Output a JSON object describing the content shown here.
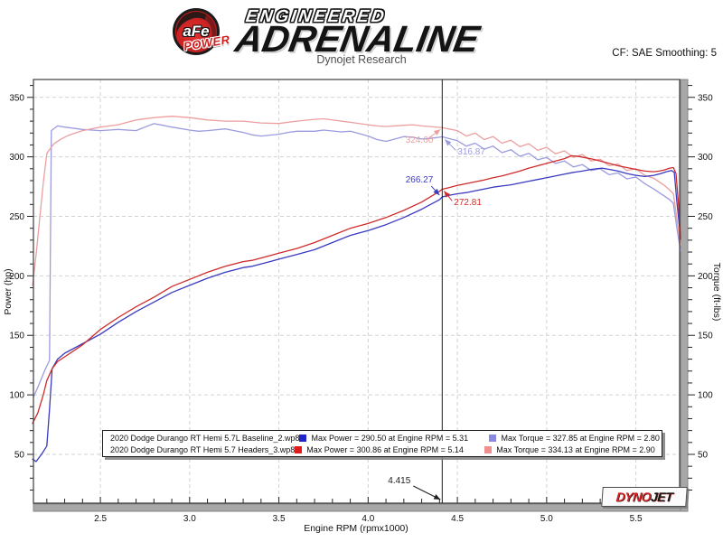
{
  "header": {
    "brand_badge": "aFe",
    "brand_sub": "POWER",
    "brand_line1": "ENGINEERED",
    "brand_line2": "ADRENALINE",
    "subtitle": "Dynojet Research",
    "correction": "CF: SAE Smoothing: 5"
  },
  "footer_logo": {
    "dyno": "DYNO",
    "jet": "JET"
  },
  "chart_data": {
    "type": "line",
    "xlabel": "Engine RPM (rpmx1000)",
    "ylabel_left": "Power (hp)",
    "ylabel_right": "Torque (ft-lbs)",
    "xlim": [
      2.125,
      5.745
    ],
    "ylim": [
      9,
      365
    ],
    "x_ticks": [
      2.5,
      3.0,
      3.5,
      4.0,
      4.5,
      5.0,
      5.5
    ],
    "y_ticks": [
      50,
      100,
      150,
      200,
      250,
      300,
      350
    ],
    "grid": "dashed",
    "cursor": {
      "rpm": 4.415,
      "label": "4.415",
      "values": [
        {
          "series": "headers_torque",
          "value": 324.6,
          "label": "324.60"
        },
        {
          "series": "baseline_torque",
          "value": 316.87,
          "label": "316.87"
        },
        {
          "series": "baseline_power",
          "value": 266.27,
          "label": "266.27"
        },
        {
          "series": "headers_power",
          "value": 272.81,
          "label": "272.81"
        }
      ]
    },
    "series": [
      {
        "name": "baseline_torque",
        "color": "#9b9bdf",
        "points": [
          [
            2.125,
            98
          ],
          [
            2.16,
            110
          ],
          [
            2.19,
            121
          ],
          [
            2.215,
            129
          ],
          [
            2.225,
            322
          ],
          [
            2.26,
            326
          ],
          [
            2.3,
            325
          ],
          [
            2.4,
            323
          ],
          [
            2.5,
            322
          ],
          [
            2.6,
            323
          ],
          [
            2.7,
            322
          ],
          [
            2.75,
            325
          ],
          [
            2.8,
            327.9
          ],
          [
            2.85,
            326.5
          ],
          [
            2.9,
            325
          ],
          [
            3.0,
            322.5
          ],
          [
            3.05,
            321.5
          ],
          [
            3.1,
            322
          ],
          [
            3.2,
            323.5
          ],
          [
            3.25,
            322
          ],
          [
            3.3,
            320.5
          ],
          [
            3.35,
            318.5
          ],
          [
            3.4,
            317.5
          ],
          [
            3.5,
            319
          ],
          [
            3.55,
            320.5
          ],
          [
            3.6,
            321.5
          ],
          [
            3.7,
            321.5
          ],
          [
            3.75,
            322.5
          ],
          [
            3.85,
            321
          ],
          [
            3.9,
            321.5
          ],
          [
            3.95,
            319.5
          ],
          [
            4.0,
            317.5
          ],
          [
            4.05,
            314.5
          ],
          [
            4.1,
            313
          ],
          [
            4.15,
            315
          ],
          [
            4.2,
            317
          ],
          [
            4.25,
            316.5
          ],
          [
            4.3,
            315
          ],
          [
            4.35,
            315.5
          ],
          [
            4.4,
            316.5
          ],
          [
            4.415,
            316.9
          ],
          [
            4.45,
            315.5
          ],
          [
            4.5,
            313.5
          ],
          [
            4.55,
            309
          ],
          [
            4.6,
            311.5
          ],
          [
            4.65,
            306.5
          ],
          [
            4.7,
            309
          ],
          [
            4.75,
            303.5
          ],
          [
            4.8,
            306
          ],
          [
            4.85,
            300.5
          ],
          [
            4.9,
            303
          ],
          [
            4.95,
            297.5
          ],
          [
            5.0,
            299.5
          ],
          [
            5.05,
            294.5
          ],
          [
            5.1,
            296.5
          ],
          [
            5.15,
            291.5
          ],
          [
            5.2,
            293.5
          ],
          [
            5.25,
            288.5
          ],
          [
            5.3,
            290
          ],
          [
            5.35,
            285
          ],
          [
            5.4,
            286.5
          ],
          [
            5.45,
            281.5
          ],
          [
            5.5,
            283
          ],
          [
            5.55,
            277.5
          ],
          [
            5.6,
            273
          ],
          [
            5.63,
            270
          ],
          [
            5.66,
            267
          ],
          [
            5.69,
            264
          ],
          [
            5.71,
            261
          ],
          [
            5.73,
            240
          ],
          [
            5.75,
            221
          ]
        ]
      },
      {
        "name": "headers_torque",
        "color": "#eb9f9f",
        "points": [
          [
            2.12,
            192
          ],
          [
            2.14,
            218
          ],
          [
            2.16,
            248
          ],
          [
            2.18,
            278
          ],
          [
            2.2,
            303
          ],
          [
            2.24,
            311
          ],
          [
            2.28,
            315
          ],
          [
            2.32,
            318
          ],
          [
            2.4,
            322
          ],
          [
            2.5,
            325
          ],
          [
            2.6,
            327
          ],
          [
            2.7,
            331
          ],
          [
            2.8,
            333
          ],
          [
            2.9,
            334.1
          ],
          [
            3.0,
            333
          ],
          [
            3.1,
            331
          ],
          [
            3.2,
            330
          ],
          [
            3.3,
            330
          ],
          [
            3.4,
            328.5
          ],
          [
            3.5,
            328
          ],
          [
            3.6,
            330
          ],
          [
            3.7,
            331.5
          ],
          [
            3.75,
            332
          ],
          [
            3.85,
            330
          ],
          [
            3.9,
            329
          ],
          [
            4.0,
            327
          ],
          [
            4.05,
            326
          ],
          [
            4.1,
            325.5
          ],
          [
            4.2,
            326.5
          ],
          [
            4.25,
            327
          ],
          [
            4.3,
            326
          ],
          [
            4.4,
            324.8
          ],
          [
            4.415,
            324.6
          ],
          [
            4.45,
            323.5
          ],
          [
            4.5,
            322
          ],
          [
            4.55,
            317.5
          ],
          [
            4.6,
            320
          ],
          [
            4.65,
            314.5
          ],
          [
            4.7,
            317
          ],
          [
            4.75,
            311.5
          ],
          [
            4.8,
            314
          ],
          [
            4.85,
            308.5
          ],
          [
            4.9,
            311
          ],
          [
            4.95,
            305.5
          ],
          [
            5.0,
            308
          ],
          [
            5.05,
            302.5
          ],
          [
            5.1,
            305
          ],
          [
            5.15,
            299.5
          ],
          [
            5.2,
            302
          ],
          [
            5.25,
            296.5
          ],
          [
            5.3,
            298
          ],
          [
            5.35,
            292.5
          ],
          [
            5.4,
            294
          ],
          [
            5.45,
            288.5
          ],
          [
            5.5,
            290
          ],
          [
            5.55,
            284.5
          ],
          [
            5.6,
            282
          ],
          [
            5.63,
            279
          ],
          [
            5.66,
            276
          ],
          [
            5.69,
            272
          ],
          [
            5.71,
            269
          ],
          [
            5.73,
            248
          ],
          [
            5.75,
            226
          ]
        ]
      },
      {
        "name": "baseline_power",
        "color": "#3a3ac0",
        "points": [
          [
            2.12,
            46
          ],
          [
            2.14,
            44
          ],
          [
            2.17,
            50
          ],
          [
            2.2,
            57
          ],
          [
            2.215,
            88
          ],
          [
            2.23,
            122
          ],
          [
            2.26,
            130
          ],
          [
            2.3,
            135
          ],
          [
            2.4,
            143
          ],
          [
            2.5,
            151
          ],
          [
            2.6,
            161
          ],
          [
            2.7,
            170
          ],
          [
            2.8,
            178
          ],
          [
            2.9,
            186
          ],
          [
            3.0,
            192
          ],
          [
            3.1,
            198
          ],
          [
            3.2,
            203
          ],
          [
            3.3,
            207
          ],
          [
            3.35,
            208
          ],
          [
            3.45,
            212
          ],
          [
            3.5,
            214
          ],
          [
            3.6,
            218
          ],
          [
            3.7,
            222
          ],
          [
            3.8,
            228
          ],
          [
            3.9,
            234
          ],
          [
            3.95,
            236
          ],
          [
            4.0,
            238
          ],
          [
            4.1,
            243
          ],
          [
            4.2,
            249
          ],
          [
            4.3,
            256
          ],
          [
            4.4,
            264
          ],
          [
            4.415,
            266.3
          ],
          [
            4.45,
            267.5
          ],
          [
            4.5,
            269
          ],
          [
            4.55,
            270
          ],
          [
            4.6,
            271.5
          ],
          [
            4.65,
            273
          ],
          [
            4.7,
            274.5
          ],
          [
            4.75,
            275.5
          ],
          [
            4.8,
            276.5
          ],
          [
            4.85,
            278
          ],
          [
            4.9,
            279.5
          ],
          [
            4.95,
            281
          ],
          [
            5.0,
            282.5
          ],
          [
            5.05,
            284
          ],
          [
            5.1,
            285.5
          ],
          [
            5.15,
            287
          ],
          [
            5.2,
            288
          ],
          [
            5.25,
            289.5
          ],
          [
            5.31,
            290.5
          ],
          [
            5.35,
            289.5
          ],
          [
            5.4,
            288
          ],
          [
            5.45,
            286
          ],
          [
            5.5,
            284.5
          ],
          [
            5.55,
            283.5
          ],
          [
            5.6,
            284.5
          ],
          [
            5.64,
            286
          ],
          [
            5.67,
            287.5
          ],
          [
            5.7,
            288.5
          ],
          [
            5.715,
            287
          ],
          [
            5.73,
            262
          ],
          [
            5.75,
            233
          ]
        ]
      },
      {
        "name": "headers_power",
        "color": "#cf2b2b",
        "points": [
          [
            2.12,
            76
          ],
          [
            2.15,
            85
          ],
          [
            2.18,
            100
          ],
          [
            2.2,
            112
          ],
          [
            2.23,
            122
          ],
          [
            2.26,
            128
          ],
          [
            2.3,
            132
          ],
          [
            2.4,
            142
          ],
          [
            2.5,
            155
          ],
          [
            2.6,
            165
          ],
          [
            2.7,
            174
          ],
          [
            2.8,
            182
          ],
          [
            2.9,
            191
          ],
          [
            3.0,
            197
          ],
          [
            3.1,
            203
          ],
          [
            3.2,
            208
          ],
          [
            3.3,
            212
          ],
          [
            3.35,
            213
          ],
          [
            3.45,
            217
          ],
          [
            3.5,
            219
          ],
          [
            3.6,
            223
          ],
          [
            3.7,
            228
          ],
          [
            3.8,
            234
          ],
          [
            3.9,
            240
          ],
          [
            3.95,
            242
          ],
          [
            4.0,
            244
          ],
          [
            4.1,
            249
          ],
          [
            4.2,
            255
          ],
          [
            4.3,
            262
          ],
          [
            4.4,
            271
          ],
          [
            4.415,
            272.8
          ],
          [
            4.45,
            274
          ],
          [
            4.5,
            276
          ],
          [
            4.55,
            277.5
          ],
          [
            4.6,
            279
          ],
          [
            4.65,
            280.5
          ],
          [
            4.7,
            282.5
          ],
          [
            4.75,
            284
          ],
          [
            4.8,
            286
          ],
          [
            4.85,
            288
          ],
          [
            4.9,
            290.5
          ],
          [
            4.95,
            292.5
          ],
          [
            5.0,
            294.5
          ],
          [
            5.05,
            296.5
          ],
          [
            5.1,
            298.5
          ],
          [
            5.14,
            300.9
          ],
          [
            5.18,
            300.3
          ],
          [
            5.22,
            299.2
          ],
          [
            5.26,
            298
          ],
          [
            5.3,
            296.5
          ],
          [
            5.35,
            294.5
          ],
          [
            5.4,
            292.5
          ],
          [
            5.45,
            291
          ],
          [
            5.5,
            289.5
          ],
          [
            5.55,
            288
          ],
          [
            5.6,
            287.5
          ],
          [
            5.63,
            288
          ],
          [
            5.66,
            289
          ],
          [
            5.69,
            290.5
          ],
          [
            5.71,
            291
          ],
          [
            5.725,
            286
          ],
          [
            5.74,
            258
          ],
          [
            5.75,
            231
          ]
        ]
      }
    ],
    "legend": {
      "rows": [
        {
          "label": "2020 Dodge Durango RT Hemi 5.7L Baseline_2.wp8",
          "power_color": "#2424cf",
          "power_text": "Max Power = 290.50 at Engine RPM = 5.31",
          "torque_color": "#8a8ae2",
          "torque_text": "Max Torque = 327.85 at Engine RPM = 2.80"
        },
        {
          "label": "2020 Dodge Durango RT Hemi 5.7 Headers_3.wp8",
          "power_color": "#e01d1d",
          "power_text": "Max Power = 300.86 at Engine RPM = 5.14",
          "torque_color": "#ef8f8f",
          "torque_text": "Max Torque = 334.13 at Engine RPM = 2.90"
        }
      ]
    }
  }
}
